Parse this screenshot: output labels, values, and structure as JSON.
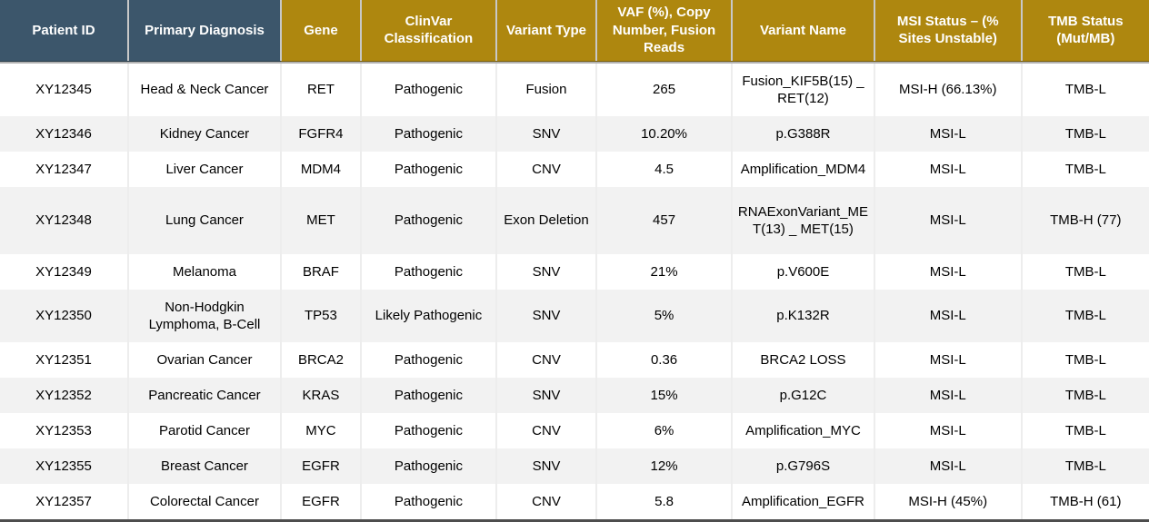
{
  "table": {
    "name": "genomic-variant-results",
    "header": {
      "columns": [
        {
          "key": "patient-id",
          "label": "Patient ID",
          "group": "blue"
        },
        {
          "key": "primary-diagnosis",
          "label": "Primary Diagnosis",
          "group": "blue"
        },
        {
          "key": "gene",
          "label": "Gene",
          "group": "gold"
        },
        {
          "key": "clinvar-classification",
          "label": "ClinVar Classification",
          "group": "gold"
        },
        {
          "key": "variant-type",
          "label": "Variant Type",
          "group": "gold"
        },
        {
          "key": "vaf-copy-number-fusion-reads",
          "label": "VAF (%), Copy Number, Fusion Reads",
          "group": "gold"
        },
        {
          "key": "variant-name",
          "label": "Variant Name",
          "group": "gold"
        },
        {
          "key": "msi-status",
          "label": "MSI Status – (% Sites Unstable)",
          "group": "gold"
        },
        {
          "key": "tmb-status",
          "label": "TMB Status (Mut/MB)",
          "group": "gold"
        }
      ]
    },
    "rows": [
      [
        "XY12345",
        "Head & Neck Cancer",
        "RET",
        "Pathogenic",
        "Fusion",
        "265",
        "Fusion_KIF5B(15) _ RET(12)",
        "MSI-H (66.13%)",
        "TMB-L"
      ],
      [
        "XY12346",
        "Kidney Cancer",
        "FGFR4",
        "Pathogenic",
        "SNV",
        "10.20%",
        "p.G388R",
        "MSI-L",
        "TMB-L"
      ],
      [
        "XY12347",
        "Liver Cancer",
        "MDM4",
        "Pathogenic",
        "CNV",
        "4.5",
        "Amplification_MDM4",
        "MSI-L",
        "TMB-L"
      ],
      [
        "XY12348",
        "Lung Cancer",
        "MET",
        "Pathogenic",
        "Exon Deletion",
        "457",
        "RNAExonVariant_MET(13) _ MET(15)",
        "MSI-L",
        "TMB-H (77)"
      ],
      [
        "XY12349",
        "Melanoma",
        "BRAF",
        "Pathogenic",
        "SNV",
        "21%",
        "p.V600E",
        "MSI-L",
        "TMB-L"
      ],
      [
        "XY12350",
        "Non-Hodgkin Lymphoma, B-Cell",
        "TP53",
        "Likely Pathogenic",
        "SNV",
        "5%",
        "p.K132R",
        "MSI-L",
        "TMB-L"
      ],
      [
        "XY12351",
        "Ovarian Cancer",
        "BRCA2",
        "Pathogenic",
        "CNV",
        "0.36",
        "BRCA2 LOSS",
        "MSI-L",
        "TMB-L"
      ],
      [
        "XY12352",
        "Pancreatic Cancer",
        "KRAS",
        "Pathogenic",
        "SNV",
        "15%",
        "p.G12C",
        "MSI-L",
        "TMB-L"
      ],
      [
        "XY12353",
        "Parotid Cancer",
        "MYC",
        "Pathogenic",
        "CNV",
        "6%",
        "Amplification_MYC",
        "MSI-L",
        "TMB-L"
      ],
      [
        "XY12355",
        "Breast Cancer",
        "EGFR",
        "Pathogenic",
        "SNV",
        "12%",
        "p.G796S",
        "MSI-L",
        "TMB-L"
      ],
      [
        "XY12357",
        "Colorectal Cancer",
        "EGFR",
        "Pathogenic",
        "CNV",
        "5.8",
        "Amplification_EGFR",
        "MSI-H (45%)",
        "TMB-H (61)"
      ]
    ],
    "colors": {
      "header_blue": "#3C566B",
      "header_gold": "#AE870F",
      "header_text": "#FFFFFF",
      "row_stripe": "#F2F2F2",
      "row_white": "#FFFFFF",
      "body_text": "#000000",
      "bottom_border": "#4D4D4D"
    }
  }
}
